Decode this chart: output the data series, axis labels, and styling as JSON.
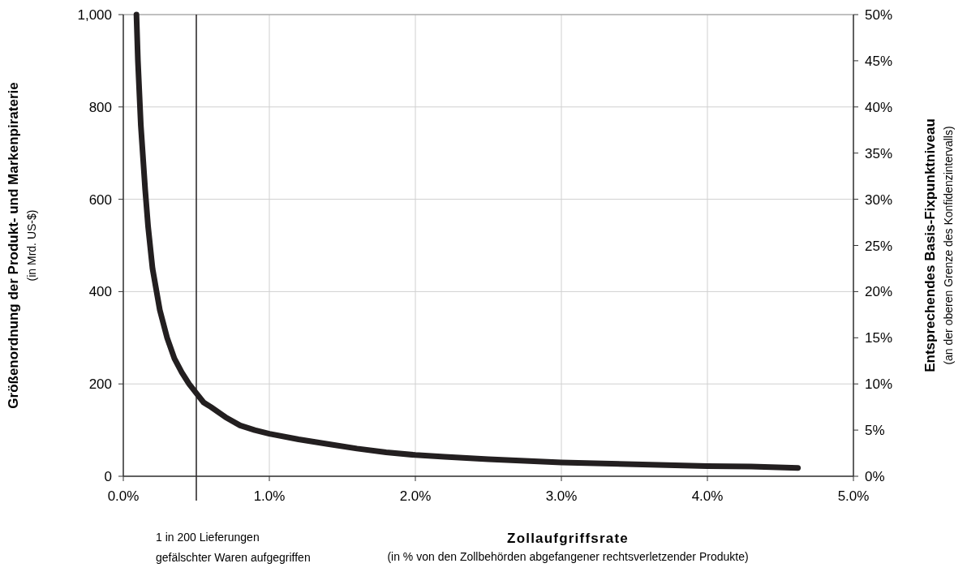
{
  "chart_data": {
    "type": "line",
    "xlabel": "Zollaufgriffsrate\n(in % von den Zollbehörden abgefangener rechtsverletzender Produkte)",
    "ylabel": "Größenordnung der Produkt- und Markenpiraterie\n(in Mrd. US-$)",
    "y2label": "Entsprechendes Basis-Fixpunktniveau\n(an der oberen Grenze des Konfidenzintervalls)",
    "x": [
      0.09,
      0.1,
      0.12,
      0.15,
      0.17,
      0.2,
      0.25,
      0.3,
      0.35,
      0.4,
      0.45,
      0.5,
      0.55,
      0.6,
      0.7,
      0.8,
      0.9,
      1.0,
      1.2,
      1.4,
      1.6,
      1.8,
      2.0,
      2.2,
      2.5,
      3.0,
      3.5,
      4.0,
      4.3,
      4.62
    ],
    "series": [
      {
        "color": "#231f20",
        "values": [
          1000,
          900,
          760,
          620,
          540,
          450,
          360,
          300,
          255,
          225,
          200,
          180,
          160,
          150,
          128,
          110,
          100,
          92,
          80,
          70,
          60,
          52,
          46,
          42,
          37,
          30,
          26,
          22,
          21,
          18
        ]
      }
    ],
    "xlim": [
      0,
      5
    ],
    "xticks": [
      {
        "value": 0,
        "label": "0.0%"
      },
      {
        "value": 1,
        "label": "1.0%"
      },
      {
        "value": 2,
        "label": "2.0%"
      },
      {
        "value": 3,
        "label": "3.0%"
      },
      {
        "value": 4,
        "label": "4.0%"
      },
      {
        "value": 5,
        "label": "5.0%"
      }
    ],
    "ylim": [
      0,
      1000
    ],
    "yticks": [
      0,
      200,
      400,
      600,
      800,
      {
        "value": 1000,
        "label": "1,000"
      }
    ],
    "y2lim": [
      0,
      50
    ],
    "y2ticks": [
      {
        "value": 0,
        "label": "0%"
      },
      {
        "value": 5,
        "label": "5%"
      },
      {
        "value": 10,
        "label": "10%"
      },
      {
        "value": 15,
        "label": "15%"
      },
      {
        "value": 20,
        "label": "20%"
      },
      {
        "value": 25,
        "label": "25%"
      },
      {
        "value": 30,
        "label": "30%"
      },
      {
        "value": 35,
        "label": "35%"
      },
      {
        "value": 40,
        "label": "40%"
      },
      {
        "value": 45,
        "label": "45%"
      },
      {
        "value": 50,
        "label": "50%"
      }
    ],
    "ref_lines": [
      {
        "axis": "x",
        "value": 0.5,
        "label": "1 in 200 Lieferungen\ngefälschter Waren aufgegriffen",
        "color": "#231f20"
      }
    ],
    "grid": true,
    "marker": "none",
    "line_style": "solid"
  }
}
